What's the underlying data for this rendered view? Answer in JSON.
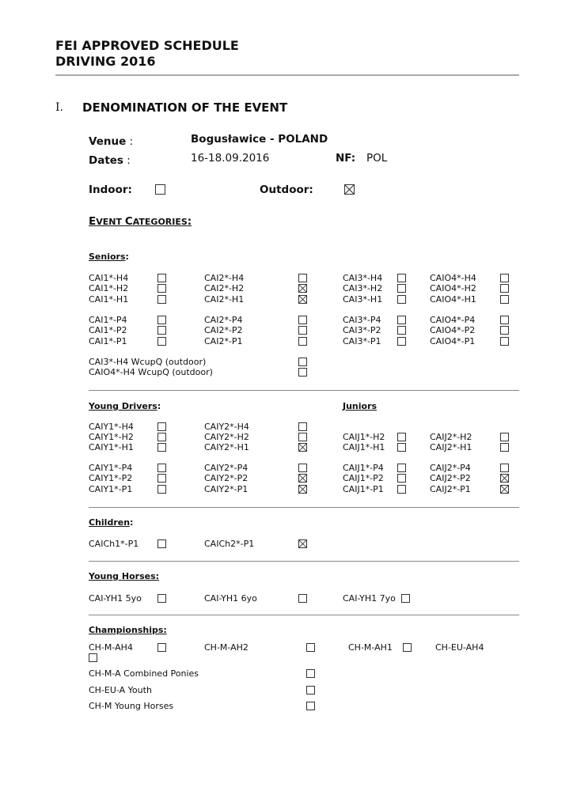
{
  "header": {
    "line1": "FEI APPROVED SCHEDULE",
    "line2": "DRIVING 2016"
  },
  "section": {
    "number": "I.",
    "title": "DENOMINATION OF THE EVENT"
  },
  "venue": {
    "label": "Venue",
    "sep": " :",
    "value": "Bogusławice - POLAND"
  },
  "dates": {
    "label": "Dates",
    "sep": " :",
    "value": "16-18.09.2016",
    "nf_label": "NF:",
    "nf_value": "POL"
  },
  "indoor": {
    "label": "Indoor:",
    "checked": false
  },
  "outdoor": {
    "label": "Outdoor:",
    "checked": true
  },
  "event_categories": {
    "first_E": "E",
    "rest1": "VENT ",
    "first_C": "C",
    "rest2": "ATEGORIES",
    ":": ":",
    "colon": ":"
  },
  "groups": {
    "seniors": {
      "title": "Seniors",
      "colon": ":",
      "rows": [
        [
          {
            "label": "CAI1*-H4",
            "checked": false
          },
          {
            "label": "CAI2*-H4",
            "checked": false
          },
          {
            "label": "CAI3*-H4",
            "checked": false
          },
          {
            "label": "CAIO4*-H4",
            "checked": false
          }
        ],
        [
          {
            "label": "CAI1*-H2",
            "checked": false
          },
          {
            "label": "CAI2*-H2",
            "checked": true
          },
          {
            "label": "CAI3*-H2",
            "checked": false
          },
          {
            "label": "CAIO4*-H2",
            "checked": false
          }
        ],
        [
          {
            "label": "CAI1*-H1",
            "checked": false
          },
          {
            "label": "CAI2*-H1",
            "checked": true
          },
          {
            "label": "CAI3*-H1",
            "checked": false
          },
          {
            "label": "CAIO4*-H1",
            "checked": false
          }
        ],
        [
          {
            "label": "CAI1*-P4",
            "checked": false
          },
          {
            "label": "CAI2*-P4",
            "checked": false
          },
          {
            "label": "CAI3*-P4",
            "checked": false
          },
          {
            "label": "CAIO4*-P4",
            "checked": false
          }
        ],
        [
          {
            "label": "CAI1*-P2",
            "checked": false
          },
          {
            "label": "CAI2*-P2",
            "checked": false
          },
          {
            "label": "CAI3*-P2",
            "checked": false
          },
          {
            "label": "CAIO4*-P2",
            "checked": false
          }
        ],
        [
          {
            "label": "CAI1*-P1",
            "checked": false
          },
          {
            "label": "CAI2*-P1",
            "checked": false
          },
          {
            "label": "CAI3*-P1",
            "checked": false
          },
          {
            "label": "CAIO4*-P1",
            "checked": false
          }
        ]
      ]
    },
    "seniors_wcup": {
      "rows": [
        [
          {
            "label": "CAI3*-H4 WcupQ (outdoor)",
            "checked": false
          }
        ],
        [
          {
            "label": "CAIO4*-H4 WcupQ (outdoor)",
            "checked": false
          }
        ]
      ]
    },
    "young_drivers": {
      "title": "Young Drivers",
      "colon": ":",
      "juniors_title": "Juniors",
      "rows": [
        [
          {
            "label": "CAIY1*-H4",
            "checked": false
          },
          {
            "label": "CAIY2*-H4",
            "checked": false
          },
          null,
          null
        ],
        [
          {
            "label": "CAIY1*-H2",
            "checked": false
          },
          {
            "label": "CAIY2*-H2",
            "checked": false
          },
          {
            "label": "CAIJ1*-H2",
            "checked": false
          },
          {
            "label": "CAIJ2*-H2",
            "checked": false
          }
        ],
        [
          {
            "label": "CAIY1*-H1",
            "checked": false
          },
          {
            "label": "CAIY2*-H1",
            "checked": true
          },
          {
            "label": "CAIJ1*-H1",
            "checked": false
          },
          {
            "label": "CAIJ2*-H1",
            "checked": false
          }
        ],
        [
          {
            "label": "CAIY1*-P4",
            "checked": false
          },
          {
            "label": "CAIY2*-P4",
            "checked": false
          },
          {
            "label": "CAIJ1*-P4",
            "checked": false
          },
          {
            "label": "CAIJ2*-P4",
            "checked": false
          }
        ],
        [
          {
            "label": "CAIY1*-P2",
            "checked": false
          },
          {
            "label": "CAIY2*-P2",
            "checked": true
          },
          {
            "label": "CAIJ1*-P2",
            "checked": false
          },
          {
            "label": "CAIJ2*-P2",
            "checked": true
          }
        ],
        [
          {
            "label": "CAIY1*-P1",
            "checked": false
          },
          {
            "label": "CAIY2*-P1",
            "checked": true
          },
          {
            "label": "CAIJ1*-P1",
            "checked": false
          },
          {
            "label": "CAIJ2*-P1",
            "checked": true
          }
        ]
      ]
    },
    "children": {
      "title": "Children",
      "colon": ":",
      "rows": [
        [
          {
            "label": "CAICh1*-P1",
            "checked": false
          },
          {
            "label": "CAICh2*-P1",
            "checked": true
          }
        ]
      ]
    },
    "young_horses": {
      "title": "Young Horses:",
      "rows": [
        [
          {
            "label": "CAI-YH1 5yo",
            "checked": false
          },
          {
            "label": "CAI-YH1 6yo",
            "checked": false
          },
          {
            "label": "CAI-YH1 7yo",
            "checked": false
          }
        ]
      ]
    },
    "championships": {
      "title": "Championships:",
      "rows": [
        [
          {
            "label": "CH-M-AH4",
            "checked": false
          },
          {
            "label": "CH-M-AH2",
            "checked": false
          },
          {
            "label": "CH-M-AH1",
            "checked": false
          },
          {
            "label": "CH-EU-AH4",
            "checked": false
          }
        ]
      ]
    },
    "championships_list": {
      "rows": [
        [
          {
            "label": "CH-M-A Combined Ponies",
            "checked": false
          }
        ],
        [
          {
            "label": "CH-EU-A Youth",
            "checked": false
          }
        ],
        [
          {
            "label": "CH-M Young Horses",
            "checked": false
          }
        ]
      ]
    }
  }
}
